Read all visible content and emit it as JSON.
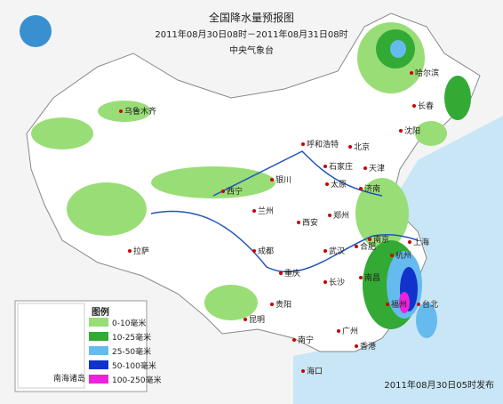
{
  "header": {
    "title": "全国降水量预报图",
    "period": "2011年08月30日08时－2011年08月31日08时",
    "agency": "中央气象台"
  },
  "cities": [
    "哈尔滨",
    "长春",
    "沈阳",
    "乌鲁木齐",
    "呼和浩特",
    "北京",
    "天津",
    "石家庄",
    "太原",
    "银川",
    "济南",
    "西宁",
    "兰州",
    "郑州",
    "西安",
    "南京",
    "合肥",
    "上海",
    "拉萨",
    "成都",
    "武汉",
    "杭州",
    "重庆",
    "长沙",
    "南昌",
    "福州",
    "贵阳",
    "台北",
    "昆明",
    "南宁",
    "广州",
    "香港",
    "海口"
  ],
  "legend": {
    "title": "图例",
    "items": [
      {
        "label": "0-10毫米",
        "color": "#99dd77"
      },
      {
        "label": "10-25毫米",
        "color": "#33aa33"
      },
      {
        "label": "25-50毫米",
        "color": "#66bbee"
      },
      {
        "label": "50-100毫米",
        "color": "#1133cc"
      },
      {
        "label": "100-250毫米",
        "color": "#ee22dd"
      }
    ]
  },
  "inset": {
    "label": "南海诸岛"
  },
  "footer": {
    "issued": "2011年08月30日05时发布"
  }
}
